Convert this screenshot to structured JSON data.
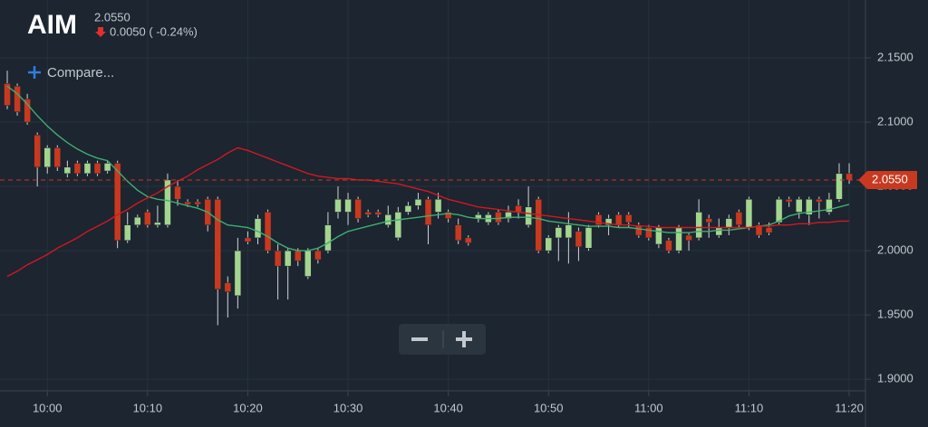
{
  "chart_data": {
    "type": "candlestick",
    "title": "AIM",
    "price_text": "2.0550",
    "change_text": "0.0050 ( -0.24%)",
    "compare_button": "Compare...",
    "up_color": "#a3d58f",
    "down_color": "#c9391f",
    "ylim": [
      1.891,
      2.195
    ],
    "yticks": [
      {
        "value": 1.9,
        "label": "1.9000"
      },
      {
        "value": 1.95,
        "label": "1.9500"
      },
      {
        "value": 2.0,
        "label": "2.0000"
      },
      {
        "value": 2.05,
        "label": "2.0500"
      },
      {
        "value": 2.1,
        "label": "2.1000"
      },
      {
        "value": 2.15,
        "label": "2.1500"
      }
    ],
    "grid": true,
    "last_price": {
      "value": 2.055,
      "label": "2.0550",
      "color": "#c9391f"
    },
    "x": [
      "09:56",
      "09:57",
      "09:58",
      "09:59",
      "10:00",
      "10:01",
      "10:02",
      "10:03",
      "10:04",
      "10:05",
      "10:06",
      "10:07",
      "10:08",
      "10:09",
      "10:10",
      "10:11",
      "10:12",
      "10:13",
      "10:14",
      "10:15",
      "10:16",
      "10:17",
      "10:18",
      "10:19",
      "10:20",
      "10:21",
      "10:22",
      "10:23",
      "10:24",
      "10:25",
      "10:26",
      "10:27",
      "10:28",
      "10:29",
      "10:30",
      "10:31",
      "10:32",
      "10:33",
      "10:34",
      "10:35",
      "10:36",
      "10:37",
      "10:38",
      "10:39",
      "10:40",
      "10:41",
      "10:42",
      "10:43",
      "10:44",
      "10:45",
      "10:46",
      "10:47",
      "10:48",
      "10:49",
      "10:50",
      "10:51",
      "10:52",
      "10:53",
      "10:54",
      "10:55",
      "10:56",
      "10:57",
      "10:58",
      "10:59",
      "11:00",
      "11:01",
      "11:02",
      "11:03",
      "11:04",
      "11:05",
      "11:06",
      "11:07",
      "11:08",
      "11:09",
      "11:10",
      "11:11",
      "11:12",
      "11:13",
      "11:14",
      "11:15",
      "11:16",
      "11:17",
      "11:18",
      "11:19",
      "11:20"
    ],
    "xticks": [
      "10:00",
      "10:10",
      "10:20",
      "10:30",
      "10:40",
      "10:50",
      "11:00",
      "11:10",
      "11:20"
    ],
    "open": [
      2.13,
      2.128,
      2.118,
      2.09,
      2.065,
      2.08,
      2.06,
      2.068,
      2.06,
      2.068,
      2.062,
      2.068,
      2.008,
      2.02,
      2.03,
      2.02,
      2.02,
      2.05,
      2.038,
      2.038,
      2.04,
      2.04,
      1.975,
      1.965,
      2.01,
      2.01,
      2.03,
      2.0,
      1.988,
      2.0,
      1.98,
      2.0,
      2.0,
      2.03,
      2.03,
      2.04,
      2.03,
      2.03,
      2.02,
      2.01,
      2.03,
      2.035,
      2.04,
      2.03,
      2.03,
      2.02,
      2.01,
      2.025,
      2.022,
      2.03,
      2.025,
      2.035,
      2.02,
      2.04,
      2.0,
      2.01,
      2.01,
      2.015,
      2.002,
      2.028,
      2.02,
      2.028,
      2.028,
      2.02,
      2.018,
      2.005,
      2.008,
      2.0,
      2.012,
      2.01,
      2.025,
      2.012,
      2.018,
      2.03,
      2.018,
      2.02,
      2.018,
      2.022,
      2.04,
      2.03,
      2.028,
      2.04,
      2.03,
      2.04,
      2.06
    ],
    "high": [
      2.14,
      2.13,
      2.122,
      2.092,
      2.082,
      2.082,
      2.07,
      2.07,
      2.07,
      2.07,
      2.07,
      2.07,
      2.03,
      2.028,
      2.032,
      2.035,
      2.06,
      2.055,
      2.04,
      2.04,
      2.042,
      2.042,
      1.98,
      2.01,
      2.015,
      2.028,
      2.032,
      2.005,
      2.002,
      2.002,
      2.002,
      2.002,
      2.03,
      2.05,
      2.045,
      2.042,
      2.032,
      2.032,
      2.035,
      2.034,
      2.038,
      2.045,
      2.042,
      2.045,
      2.032,
      2.025,
      2.012,
      2.03,
      2.03,
      2.032,
      2.035,
      2.04,
      2.05,
      2.042,
      2.012,
      2.02,
      2.03,
      2.018,
      2.02,
      2.03,
      2.028,
      2.03,
      2.03,
      2.022,
      2.02,
      2.02,
      2.01,
      2.02,
      2.014,
      2.04,
      2.028,
      2.025,
      2.028,
      2.032,
      2.042,
      2.022,
      2.022,
      2.042,
      2.042,
      2.042,
      2.042,
      2.042,
      2.045,
      2.068,
      2.068
    ],
    "low": [
      2.11,
      2.105,
      2.098,
      2.05,
      2.06,
      2.062,
      2.057,
      2.058,
      2.058,
      2.058,
      2.06,
      2.002,
      2.006,
      2.018,
      2.018,
      2.018,
      2.018,
      2.035,
      2.034,
      2.034,
      2.015,
      1.942,
      1.948,
      1.955,
      2.005,
      2.005,
      1.998,
      1.962,
      1.962,
      1.988,
      1.978,
      1.99,
      1.998,
      2.025,
      2.02,
      2.022,
      2.026,
      2.026,
      2.018,
      2.008,
      2.028,
      2.032,
      2.005,
      2.025,
      2.022,
      2.005,
      2.004,
      2.022,
      2.02,
      2.02,
      2.022,
      2.025,
      2.018,
      1.998,
      1.998,
      1.992,
      1.99,
      1.992,
      2.0,
      2.018,
      2.012,
      2.018,
      2.018,
      2.01,
      2.008,
      2.002,
      1.998,
      1.998,
      2.0,
      2.008,
      2.01,
      2.01,
      2.012,
      2.018,
      2.016,
      2.01,
      2.012,
      2.02,
      2.034,
      2.025,
      2.02,
      2.025,
      2.028,
      2.038,
      2.052
    ],
    "close": [
      2.113,
      2.108,
      2.1,
      2.065,
      2.08,
      2.065,
      2.065,
      2.06,
      2.068,
      2.06,
      2.068,
      2.008,
      2.02,
      2.026,
      2.02,
      2.022,
      2.055,
      2.04,
      2.036,
      2.036,
      2.02,
      1.97,
      1.968,
      2.0,
      2.007,
      2.025,
      2.0,
      1.988,
      2.0,
      1.992,
      2.0,
      1.993,
      2.02,
      2.04,
      2.04,
      2.025,
      2.028,
      2.028,
      2.028,
      2.03,
      2.035,
      2.04,
      2.02,
      2.04,
      2.025,
      2.008,
      2.006,
      2.028,
      2.028,
      2.022,
      2.03,
      2.03,
      2.034,
      2.0,
      2.01,
      2.018,
      2.02,
      2.003,
      2.018,
      2.02,
      2.025,
      2.02,
      2.022,
      2.012,
      2.01,
      2.018,
      2.0,
      2.018,
      2.008,
      2.03,
      2.022,
      2.018,
      2.025,
      2.02,
      2.04,
      2.012,
      2.014,
      2.04,
      2.038,
      2.04,
      2.04,
      2.038,
      2.04,
      2.06,
      2.055
    ],
    "overlays": [
      {
        "color": "#3fae72",
        "values": [
          2.128,
          2.122,
          2.114,
          2.105,
          2.097,
          2.09,
          2.084,
          2.079,
          2.075,
          2.072,
          2.07,
          2.062,
          2.054,
          2.047,
          2.042,
          2.04,
          2.039,
          2.037,
          2.035,
          2.033,
          2.03,
          2.024,
          2.02,
          2.019,
          2.018,
          2.015,
          2.011,
          2.006,
          2.002,
          2.0,
          2.0,
          2.002,
          2.006,
          2.011,
          2.015,
          2.017,
          2.019,
          2.021,
          2.023,
          2.024,
          2.025,
          2.026,
          2.027,
          2.028,
          2.029,
          2.028,
          2.026,
          2.025,
          2.025,
          2.025,
          2.026,
          2.026,
          2.026,
          2.025,
          2.023,
          2.022,
          2.021,
          2.02,
          2.019,
          2.019,
          2.019,
          2.018,
          2.018,
          2.017,
          2.016,
          2.015,
          2.014,
          2.014,
          2.014,
          2.015,
          2.015,
          2.016,
          2.016,
          2.017,
          2.018,
          2.019,
          2.02,
          2.023,
          2.027,
          2.029,
          2.03,
          2.031,
          2.032,
          2.034,
          2.036
        ]
      },
      {
        "color": "#d3181f",
        "values": [
          1.98,
          1.984,
          1.989,
          1.993,
          1.997,
          2.002,
          2.006,
          2.01,
          2.015,
          2.019,
          2.023,
          2.028,
          2.032,
          2.037,
          2.041,
          2.045,
          2.05,
          2.054,
          2.058,
          2.063,
          2.067,
          2.071,
          2.076,
          2.08,
          2.078,
          2.075,
          2.072,
          2.069,
          2.066,
          2.063,
          2.06,
          2.058,
          2.057,
          2.056,
          2.056,
          2.055,
          2.055,
          2.054,
          2.053,
          2.052,
          2.05,
          2.048,
          2.046,
          2.043,
          2.04,
          2.038,
          2.036,
          2.034,
          2.033,
          2.032,
          2.031,
          2.03,
          2.029,
          2.028,
          2.027,
          2.026,
          2.025,
          2.024,
          2.023,
          2.022,
          2.021,
          2.02,
          2.02,
          2.019,
          2.019,
          2.018,
          2.018,
          2.018,
          2.018,
          2.018,
          2.018,
          2.018,
          2.018,
          2.018,
          2.018,
          2.019,
          2.019,
          2.02,
          2.02,
          2.021,
          2.021,
          2.022,
          2.022,
          2.023,
          2.023
        ]
      }
    ]
  }
}
